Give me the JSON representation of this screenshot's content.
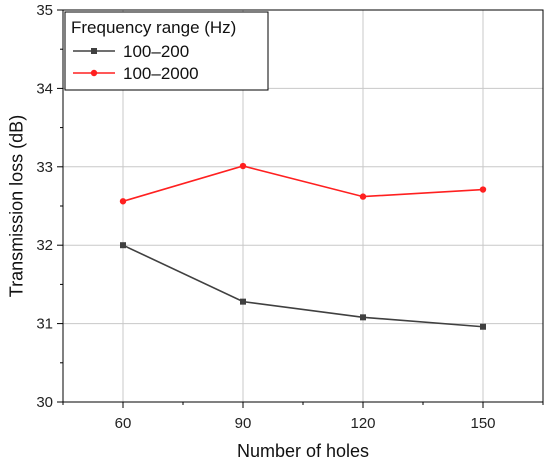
{
  "chart_data": {
    "type": "line",
    "xlabel": "Number of holes",
    "ylabel": "Transmission loss (dB)",
    "categories": [
      60,
      90,
      120,
      150
    ],
    "ylim": [
      30,
      35
    ],
    "yticks": [
      30,
      31,
      32,
      33,
      34,
      35
    ],
    "grid": true,
    "legend": {
      "title": "Frequency range (Hz)",
      "placement": "top-left"
    },
    "series": [
      {
        "name": "100–200",
        "color": "#404040",
        "marker": "square",
        "values": [
          32.0,
          31.28,
          31.08,
          30.96
        ]
      },
      {
        "name": "100–2000",
        "color": "#ff2020",
        "marker": "circle",
        "values": [
          32.56,
          33.01,
          32.62,
          32.71
        ]
      }
    ]
  }
}
